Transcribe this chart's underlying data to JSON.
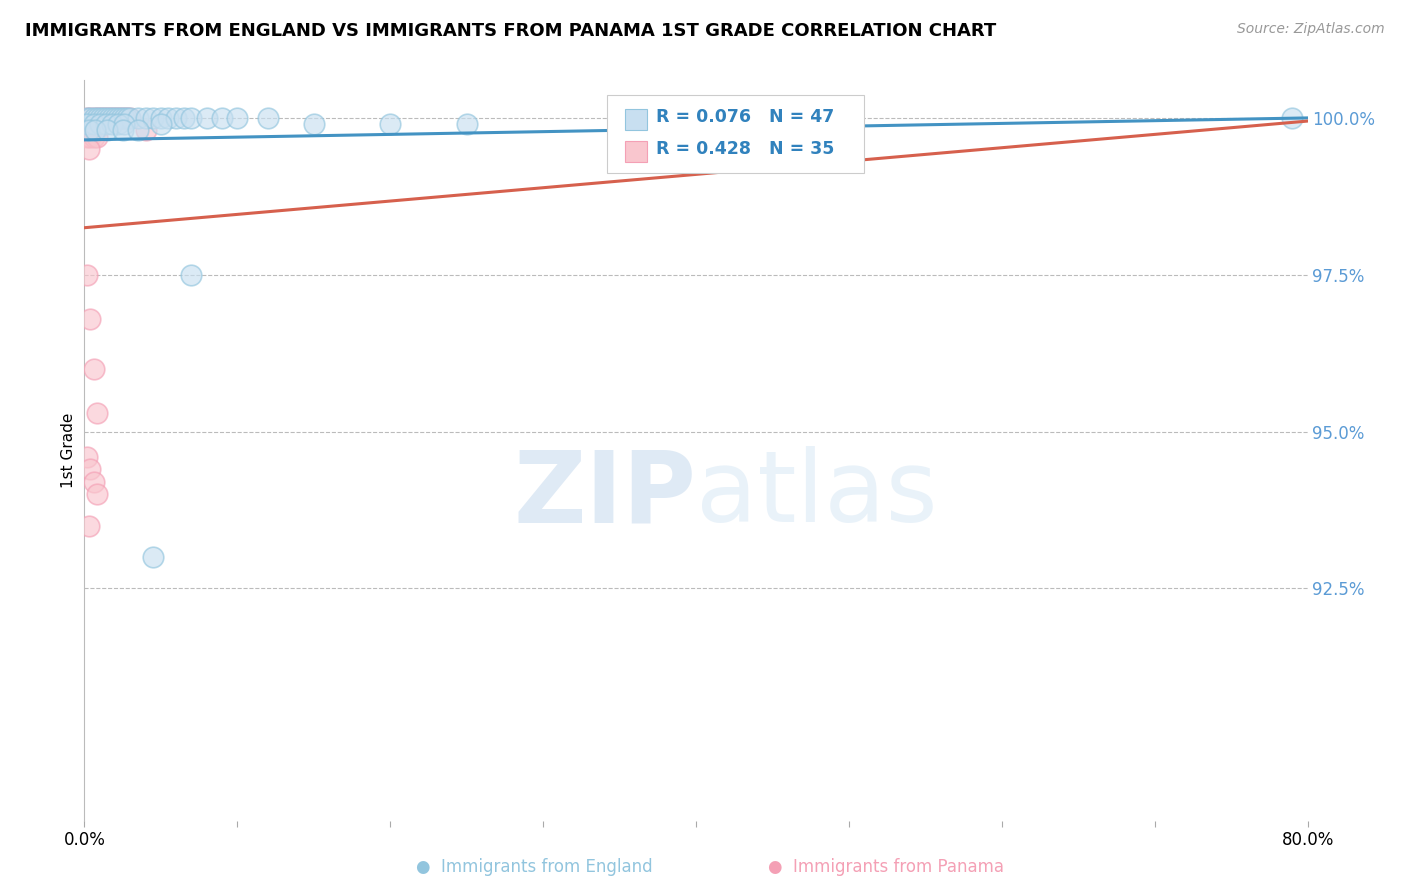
{
  "title": "IMMIGRANTS FROM ENGLAND VS IMMIGRANTS FROM PANAMA 1ST GRADE CORRELATION CHART",
  "source": "Source: ZipAtlas.com",
  "ylabel": "1st Grade",
  "legend_label_blue": "Immigrants from England",
  "legend_label_pink": "Immigrants from Panama",
  "R_blue": "R = 0.076",
  "N_blue": "N = 47",
  "R_pink": "R = 0.428",
  "N_pink": "N = 35",
  "blue_color": "#92c5de",
  "pink_color": "#f4a0b5",
  "blue_line_color": "#4393c3",
  "pink_line_color": "#d6604d",
  "legend_R_color": "#3182bd",
  "watermark_zip": "ZIP",
  "watermark_atlas": "atlas",
  "yticks": [
    1.0,
    0.975,
    0.95,
    0.925
  ],
  "yticklabels": [
    "100.0%",
    "97.5%",
    "95.0%",
    "92.5%"
  ],
  "xlim": [
    0.0,
    0.8
  ],
  "ylim": [
    0.888,
    1.006
  ],
  "blue_scatter_x": [
    0.002,
    0.004,
    0.006,
    0.008,
    0.01,
    0.012,
    0.014,
    0.016,
    0.018,
    0.02,
    0.022,
    0.024,
    0.026,
    0.028,
    0.03,
    0.035,
    0.04,
    0.045,
    0.05,
    0.055,
    0.06,
    0.065,
    0.07,
    0.08,
    0.09,
    0.1,
    0.12,
    0.002,
    0.006,
    0.01,
    0.014,
    0.018,
    0.022,
    0.026,
    0.05,
    0.07,
    0.15,
    0.2,
    0.25,
    0.4,
    0.79,
    0.003,
    0.007,
    0.015,
    0.025,
    0.035,
    0.045
  ],
  "blue_scatter_y": [
    1.0,
    1.0,
    1.0,
    1.0,
    1.0,
    1.0,
    1.0,
    1.0,
    1.0,
    1.0,
    1.0,
    1.0,
    1.0,
    1.0,
    1.0,
    1.0,
    1.0,
    1.0,
    1.0,
    1.0,
    1.0,
    1.0,
    1.0,
    1.0,
    1.0,
    1.0,
    1.0,
    0.999,
    0.999,
    0.999,
    0.999,
    0.999,
    0.999,
    0.999,
    0.999,
    0.975,
    0.999,
    0.999,
    0.999,
    0.999,
    1.0,
    0.998,
    0.998,
    0.998,
    0.998,
    0.998,
    0.93
  ],
  "pink_scatter_x": [
    0.002,
    0.004,
    0.006,
    0.008,
    0.01,
    0.012,
    0.014,
    0.016,
    0.018,
    0.02,
    0.022,
    0.024,
    0.026,
    0.028,
    0.03,
    0.002,
    0.004,
    0.006,
    0.008,
    0.003,
    0.002,
    0.004,
    0.006,
    0.008,
    0.003,
    0.002,
    0.004,
    0.006,
    0.008,
    0.04,
    0.002,
    0.004,
    0.006,
    0.008,
    0.003
  ],
  "pink_scatter_y": [
    1.0,
    1.0,
    1.0,
    1.0,
    1.0,
    1.0,
    1.0,
    1.0,
    1.0,
    1.0,
    1.0,
    1.0,
    1.0,
    1.0,
    1.0,
    0.999,
    0.999,
    0.999,
    0.999,
    0.999,
    0.997,
    0.997,
    0.997,
    0.997,
    0.995,
    0.975,
    0.968,
    0.96,
    0.953,
    0.998,
    0.946,
    0.944,
    0.942,
    0.94,
    0.935
  ],
  "blue_trend_x": [
    0.0,
    0.8
  ],
  "blue_trend_y": [
    0.9965,
    1.0
  ],
  "pink_trend_x": [
    0.0,
    0.8
  ],
  "pink_trend_y": [
    0.9825,
    0.9995
  ]
}
